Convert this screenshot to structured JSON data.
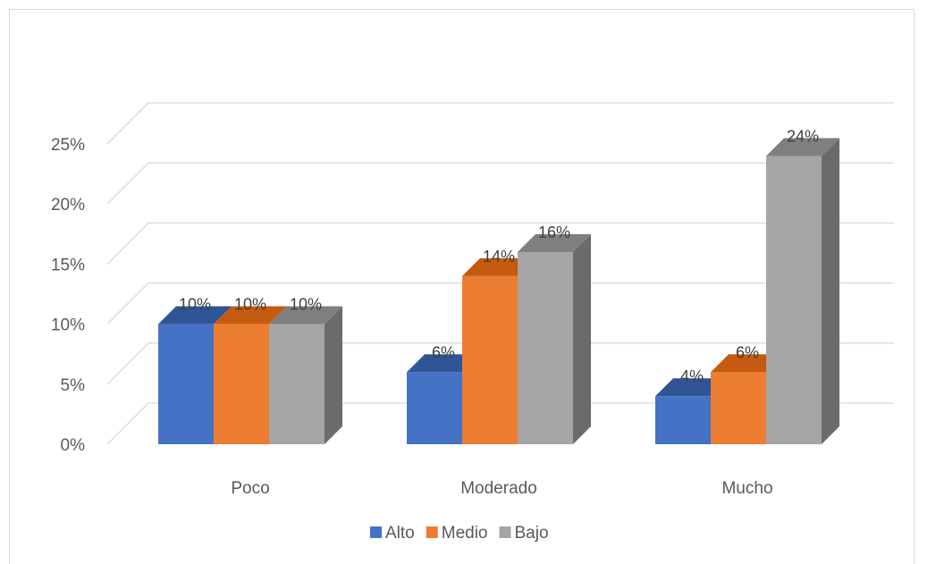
{
  "chart_data": {
    "type": "bar",
    "categories": [
      "Poco",
      "Moderado",
      "Mucho"
    ],
    "series": [
      {
        "name": "Alto",
        "values": [
          10,
          6,
          4
        ],
        "labels": [
          "10%",
          "6%",
          "4%"
        ],
        "color": "#4472c4",
        "top_color": "#2f5597",
        "side_color": "#2f4f8c"
      },
      {
        "name": "Medio",
        "values": [
          10,
          14,
          6
        ],
        "labels": [
          "10%",
          "14%",
          "6%"
        ],
        "color": "#ed7d31",
        "top_color": "#c55a11",
        "side_color": "#b55313"
      },
      {
        "name": "Bajo",
        "values": [
          10,
          16,
          24
        ],
        "labels": [
          "10%",
          "16%",
          "24%"
        ],
        "color": "#a5a5a5",
        "top_color": "#7f7f7f",
        "side_color": "#6b6b6b"
      }
    ],
    "y_ticks": [
      "0%",
      "5%",
      "10%",
      "15%",
      "20%",
      "25%"
    ],
    "ylim": [
      0,
      25
    ],
    "grid": true,
    "legend_position": "bottom",
    "title": "",
    "xlabel": "",
    "ylabel": ""
  },
  "colors": {
    "gridline": "#d9d9d9",
    "text": "#595959"
  }
}
